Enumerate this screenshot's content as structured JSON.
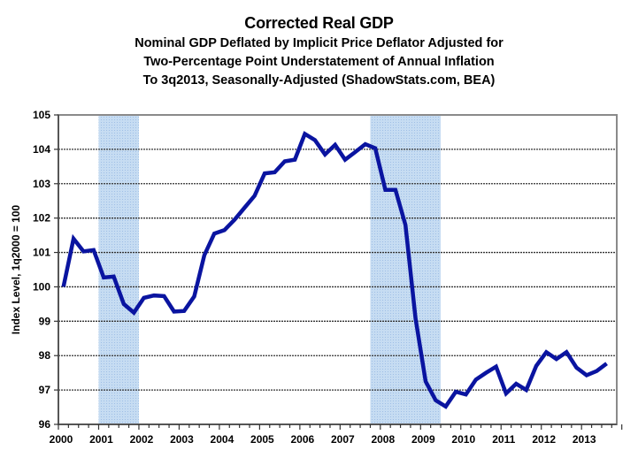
{
  "chart_data": {
    "type": "line",
    "title": "Corrected Real GDP",
    "subtitle_lines": [
      "Nominal GDP Deflated by Implicit Price Deflator Adjusted for",
      "Two-Percentage Point Understatement of Annual Inflation",
      "To 3q2013, Seasonally-Adjusted (ShadowStats.com, BEA)"
    ],
    "xlabel": "",
    "ylabel": "Index Level, 1q2000 = 100",
    "ylim": [
      96,
      105
    ],
    "yticks": [
      96,
      97,
      98,
      99,
      100,
      101,
      102,
      103,
      104,
      105
    ],
    "xlim": [
      2000,
      2013.875
    ],
    "xticks": [
      "2000",
      "2001",
      "2002",
      "2003",
      "2004",
      "2005",
      "2006",
      "2007",
      "2008",
      "2009",
      "2010",
      "2011",
      "2012",
      "2013"
    ],
    "grid": "horizontal",
    "recessions": [
      {
        "start": 2001.0,
        "end": 2002.0
      },
      {
        "start": 2007.75,
        "end": 2009.5
      }
    ],
    "recession_color": "#b8d3f0",
    "line_color": "#0a14a0",
    "series": [
      {
        "name": "Corrected Real GDP",
        "x_labels": [
          "1q2000",
          "2q2000",
          "3q2000",
          "4q2000",
          "1q2001",
          "2q2001",
          "3q2001",
          "4q2001",
          "1q2002",
          "2q2002",
          "3q2002",
          "4q2002",
          "1q2003",
          "2q2003",
          "3q2003",
          "4q2003",
          "1q2004",
          "2q2004",
          "3q2004",
          "4q2004",
          "1q2005",
          "2q2005",
          "3q2005",
          "4q2005",
          "1q2006",
          "2q2006",
          "3q2006",
          "4q2006",
          "1q2007",
          "2q2007",
          "3q2007",
          "4q2007",
          "1q2008",
          "2q2008",
          "3q2008",
          "4q2008",
          "1q2009",
          "2q2009",
          "3q2009",
          "4q2009",
          "1q2010",
          "2q2010",
          "3q2010",
          "4q2010",
          "1q2011",
          "2q2011",
          "3q2011",
          "4q2011",
          "1q2012",
          "2q2012",
          "3q2012",
          "4q2012",
          "1q2013",
          "2q2013",
          "3q2013"
        ],
        "values": [
          100.0,
          101.4,
          101.03,
          101.07,
          100.27,
          100.3,
          99.5,
          99.25,
          99.68,
          99.75,
          99.73,
          99.28,
          99.3,
          99.72,
          100.92,
          101.55,
          101.65,
          101.95,
          102.3,
          102.65,
          103.3,
          103.33,
          103.65,
          103.7,
          104.45,
          104.27,
          103.85,
          104.13,
          103.7,
          103.92,
          104.15,
          104.03,
          102.82,
          102.82,
          101.8,
          99.08,
          97.25,
          96.7,
          96.52,
          96.95,
          96.87,
          97.3,
          97.5,
          97.68,
          96.9,
          97.18,
          97.0,
          97.7,
          98.1,
          97.9,
          98.1,
          97.65,
          97.43,
          97.55,
          97.77
        ]
      }
    ]
  }
}
